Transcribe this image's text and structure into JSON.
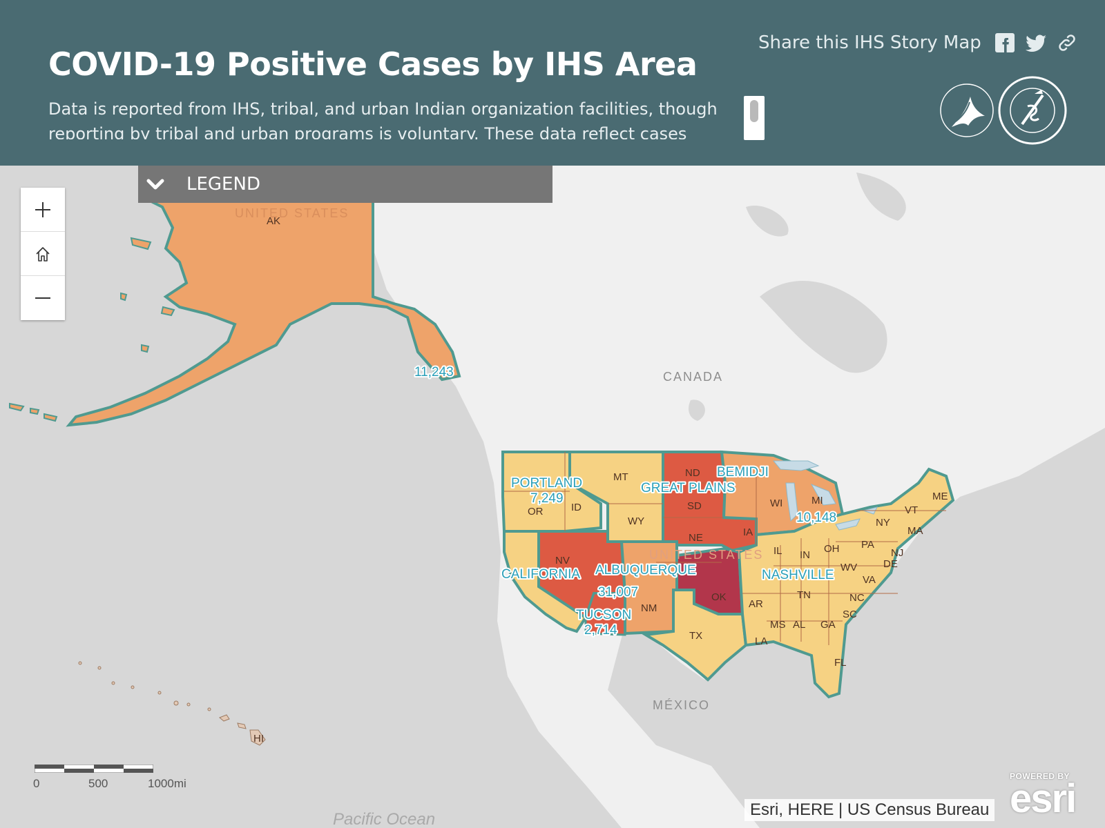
{
  "header": {
    "title": "COVID-19 Positive Cases by IHS Area",
    "description": "Data is reported from IHS, tribal, and urban Indian organization facilities, though reporting by tribal and urban programs is voluntary. These data reflect cases",
    "share_text": "Share this IHS Story Map",
    "share_icons": [
      "facebook-icon",
      "twitter-icon",
      "link-icon"
    ]
  },
  "legend": {
    "label": "LEGEND"
  },
  "map_controls": {
    "zoom_in_icon": "plus-icon",
    "home_icon": "home-icon",
    "zoom_out_icon": "minus-icon"
  },
  "map": {
    "areas": [
      {
        "name": "",
        "value": "11,243",
        "color": "#eea36a"
      },
      {
        "name": "PORTLAND",
        "value": "7,249",
        "color": "#f6d283"
      },
      {
        "name": "BEMIDJI",
        "value": "10,148",
        "color": "#eea36a"
      },
      {
        "name": "GREAT PLAINS",
        "value": "",
        "color": "#dd5a43"
      },
      {
        "name": "CALIFORNIA",
        "value": "",
        "color": "#f6d283"
      },
      {
        "name": "ALBUQUERQUE",
        "value": "",
        "color": "#eea36a"
      },
      {
        "name": "NASHVILLE",
        "value": "",
        "color": "#f6d283"
      },
      {
        "name": "",
        "value": "31,007",
        "color": "#dd5a43"
      },
      {
        "name": "TUCSON",
        "value": "2,714",
        "color": "#dd5a43"
      }
    ],
    "state_labels": [
      "AK",
      "MT",
      "ND",
      "OR",
      "ID",
      "WY",
      "SD",
      "WI",
      "MI",
      "NY",
      "ME",
      "VT",
      "MA",
      "IA",
      "NE",
      "PA",
      "IL",
      "IN",
      "OH",
      "NJ",
      "DE",
      "NV",
      "WV",
      "VA",
      "NM",
      "OK",
      "AR",
      "TN",
      "NC",
      "SC",
      "MS",
      "AL",
      "GA",
      "LA",
      "TX",
      "FL",
      "HI"
    ],
    "place_labels": {
      "canada": "CANADA",
      "mexico": "MÉXICO",
      "us_ak": "UNITED STATES",
      "us_main": "UNITED STATES",
      "ocean": "Pacific Ocean"
    },
    "colors": {
      "low": "#f6d283",
      "medium": "#eea36a",
      "high": "#dd5a43",
      "highest": "#b2364b",
      "outline": "#4f9a90",
      "land": "#f0f0f0",
      "water": "#d7d7d7"
    }
  },
  "scale_bar": {
    "labels": [
      "0",
      "500",
      "1000mi"
    ]
  },
  "attribution": "Esri, HERE | US Census Bureau",
  "esri_logo": {
    "powered_by": "POWERED BY",
    "word": "esri"
  }
}
